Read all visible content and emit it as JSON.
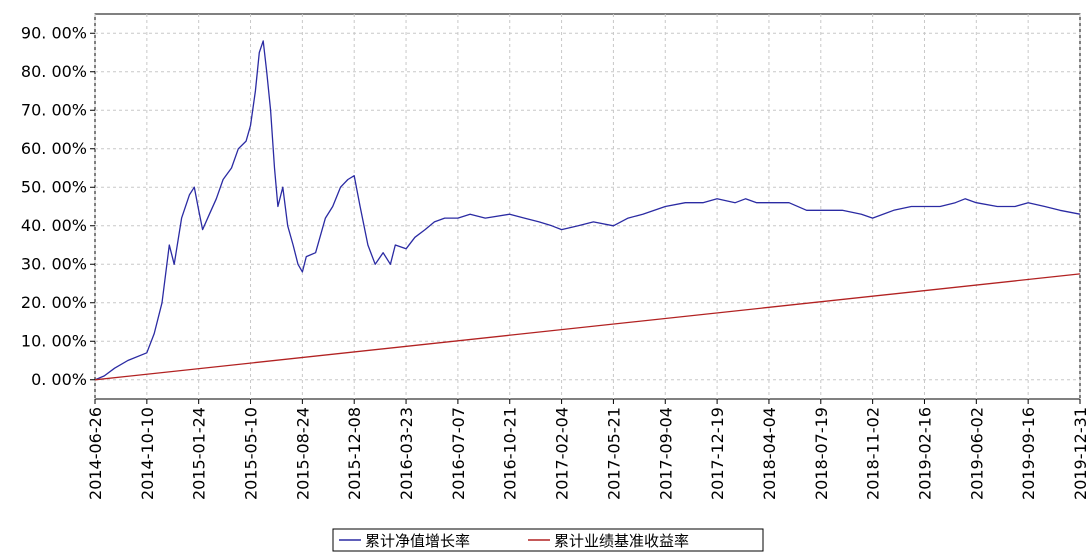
{
  "chart_data": {
    "type": "line",
    "title": "",
    "xlabel": "",
    "ylabel": "",
    "ylim": [
      -0.05,
      0.95
    ],
    "y_ticks": [
      {
        "value": 0.0,
        "label": "0. 00%"
      },
      {
        "value": 0.1,
        "label": "10. 00%"
      },
      {
        "value": 0.2,
        "label": "20. 00%"
      },
      {
        "value": 0.3,
        "label": "30. 00%"
      },
      {
        "value": 0.4,
        "label": "40. 00%"
      },
      {
        "value": 0.5,
        "label": "50. 00%"
      },
      {
        "value": 0.6,
        "label": "60. 00%"
      },
      {
        "value": 0.7,
        "label": "70. 00%"
      },
      {
        "value": 0.8,
        "label": "80. 00%"
      },
      {
        "value": 0.9,
        "label": "90. 00%"
      }
    ],
    "x_ticks": [
      "2014-06-26",
      "2014-10-10",
      "2015-01-24",
      "2015-05-10",
      "2015-08-24",
      "2015-12-08",
      "2016-03-23",
      "2016-07-07",
      "2016-10-21",
      "2017-02-04",
      "2017-05-21",
      "2017-09-04",
      "2017-12-19",
      "2018-04-04",
      "2018-07-19",
      "2018-11-02",
      "2019-02-16",
      "2019-06-02",
      "2019-09-16",
      "2019-12-31"
    ],
    "grid": true,
    "legend_position": "bottom",
    "colors": {
      "nav": "#2b2ba3",
      "benchmark": "#b22222"
    },
    "series": [
      {
        "name": "累计净值增长率",
        "x": [
          "2014-06-26",
          "2014-07-15",
          "2014-08-05",
          "2014-09-01",
          "2014-10-10",
          "2014-10-25",
          "2014-11-10",
          "2014-11-25",
          "2014-12-05",
          "2014-12-20",
          "2015-01-05",
          "2015-01-15",
          "2015-01-24",
          "2015-02-01",
          "2015-02-15",
          "2015-03-01",
          "2015-03-15",
          "2015-04-01",
          "2015-04-15",
          "2015-05-01",
          "2015-05-10",
          "2015-05-20",
          "2015-05-28",
          "2015-06-05",
          "2015-06-12",
          "2015-06-20",
          "2015-06-28",
          "2015-07-05",
          "2015-07-15",
          "2015-07-25",
          "2015-08-05",
          "2015-08-15",
          "2015-08-24",
          "2015-09-01",
          "2015-09-20",
          "2015-10-10",
          "2015-10-25",
          "2015-11-10",
          "2015-11-25",
          "2015-12-08",
          "2015-12-20",
          "2016-01-05",
          "2016-01-20",
          "2016-02-05",
          "2016-02-20",
          "2016-03-01",
          "2016-03-23",
          "2016-04-10",
          "2016-05-01",
          "2016-05-20",
          "2016-06-10",
          "2016-07-07",
          "2016-08-01",
          "2016-09-01",
          "2016-10-21",
          "2016-11-20",
          "2016-12-20",
          "2017-01-15",
          "2017-02-04",
          "2017-03-10",
          "2017-04-10",
          "2017-05-21",
          "2017-06-20",
          "2017-07-20",
          "2017-09-04",
          "2017-10-15",
          "2017-11-20",
          "2017-12-19",
          "2018-01-25",
          "2018-02-15",
          "2018-03-10",
          "2018-04-04",
          "2018-05-15",
          "2018-06-20",
          "2018-07-19",
          "2018-09-01",
          "2018-10-10",
          "2018-11-02",
          "2018-12-15",
          "2019-01-20",
          "2019-02-16",
          "2019-03-20",
          "2019-04-20",
          "2019-05-10",
          "2019-06-02",
          "2019-07-15",
          "2019-08-20",
          "2019-09-16",
          "2019-10-20",
          "2019-11-20",
          "2019-12-31"
        ],
        "values": [
          0.0,
          0.01,
          0.03,
          0.05,
          0.07,
          0.12,
          0.2,
          0.35,
          0.3,
          0.42,
          0.48,
          0.5,
          0.44,
          0.39,
          0.43,
          0.47,
          0.52,
          0.55,
          0.6,
          0.62,
          0.66,
          0.75,
          0.85,
          0.88,
          0.8,
          0.7,
          0.55,
          0.45,
          0.5,
          0.4,
          0.35,
          0.3,
          0.28,
          0.32,
          0.33,
          0.42,
          0.45,
          0.5,
          0.52,
          0.53,
          0.45,
          0.35,
          0.3,
          0.33,
          0.3,
          0.35,
          0.34,
          0.37,
          0.39,
          0.41,
          0.42,
          0.42,
          0.43,
          0.42,
          0.43,
          0.42,
          0.41,
          0.4,
          0.39,
          0.4,
          0.41,
          0.4,
          0.42,
          0.43,
          0.45,
          0.46,
          0.46,
          0.47,
          0.46,
          0.47,
          0.46,
          0.46,
          0.46,
          0.44,
          0.44,
          0.44,
          0.43,
          0.42,
          0.44,
          0.45,
          0.45,
          0.45,
          0.46,
          0.47,
          0.46,
          0.45,
          0.45,
          0.46,
          0.45,
          0.44,
          0.43
        ]
      },
      {
        "name": "累计业绩基准收益率",
        "x": [
          "2014-06-26",
          "2019-12-31"
        ],
        "values": [
          0.0,
          0.275
        ]
      }
    ]
  }
}
